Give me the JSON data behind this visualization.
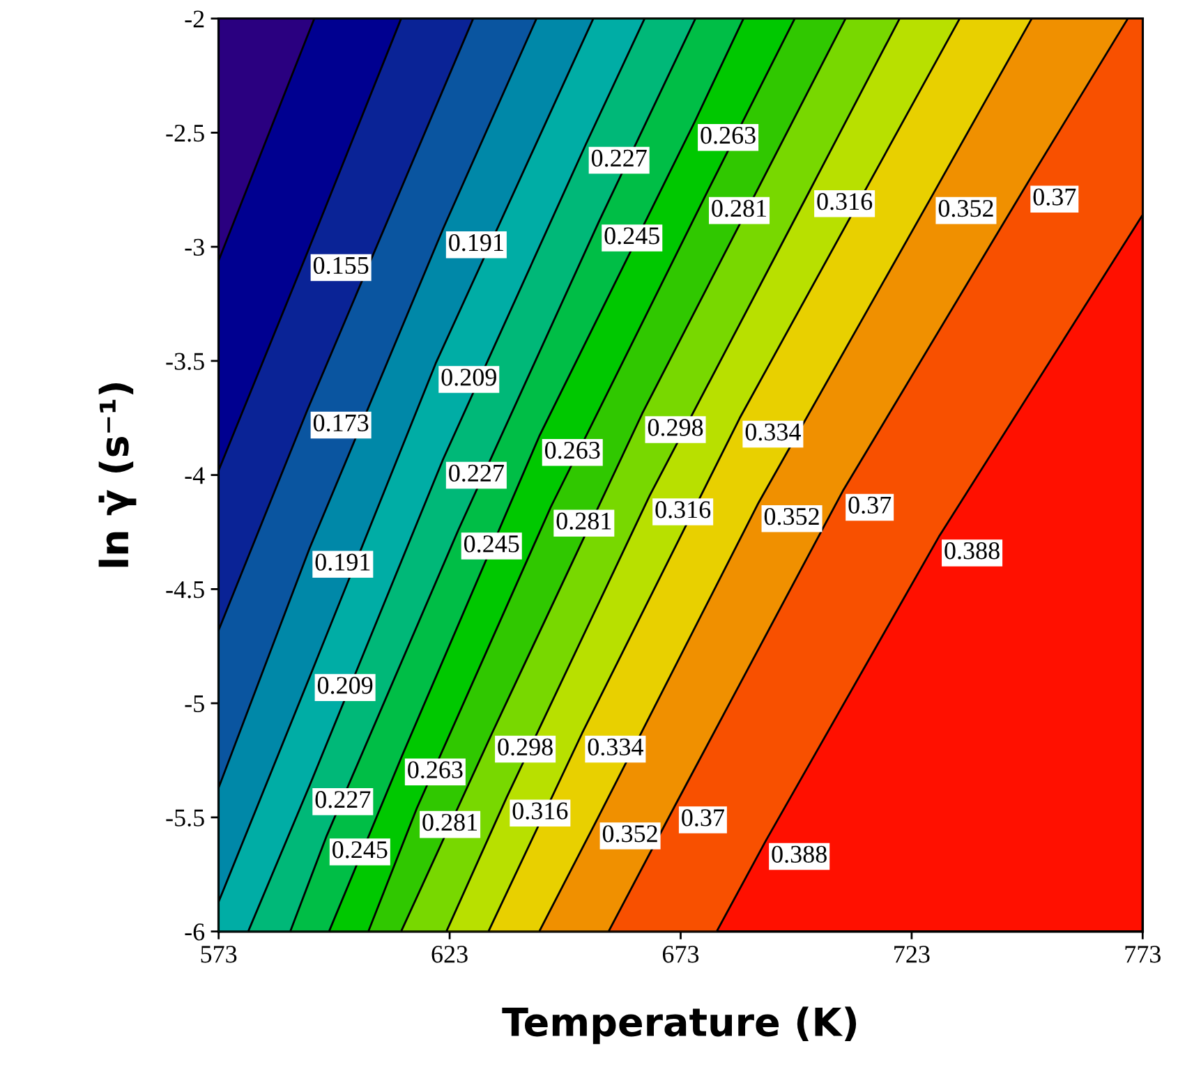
{
  "chart_data": {
    "type": "area",
    "xlabel": "Temperature (K)",
    "ylabel": "ln γ̇ (s⁻¹)",
    "xlim": [
      573,
      773
    ],
    "xticks": [
      573,
      623,
      673,
      723,
      773
    ],
    "ylim": [
      -6,
      -2
    ],
    "yticks": [
      -2,
      -2.5,
      -3,
      -3.5,
      -4,
      -4.5,
      -5,
      -5.5,
      -6
    ],
    "grid": false,
    "legend": false,
    "bands": [
      {
        "axis": "x",
        "from": 680.8,
        "to": 773,
        "color": "#ff1000"
      }
    ],
    "series": [
      {
        "color": "#2a0080",
        "x": [
          593.7,
          573
        ],
        "values": [
          -2,
          -3.06
        ]
      },
      {
        "color": "#000090",
        "x": [
          612.5,
          592.3,
          573
        ],
        "values": [
          -2,
          -3.02,
          -3.98
        ]
      },
      {
        "color": "#0a2396",
        "x": [
          628.1,
          592.3,
          573
        ],
        "values": [
          -2,
          -3.71,
          -4.68
        ]
      },
      {
        "color": "#0a55a0",
        "x": [
          641.8,
          621.6,
          592.7,
          573
        ],
        "values": [
          -2,
          -2.92,
          -4.32,
          -5.37
        ]
      },
      {
        "color": "#0088a8",
        "x": [
          654.1,
          620.0,
          593.2,
          573
        ],
        "values": [
          -2,
          -3.51,
          -4.86,
          -5.87
        ]
      },
      {
        "color": "#00ada5",
        "x": [
          665.2,
          652.5,
          621.6,
          592.7,
          579.4,
          573
        ],
        "values": [
          -2,
          -2.55,
          -3.93,
          -5.36,
          -6,
          -6
        ]
      },
      {
        "color": "#00b878",
        "x": [
          676.2,
          655.3,
          624.9,
          596.4,
          588.5,
          573
        ],
        "values": [
          -2,
          -2.89,
          -4.24,
          -5.58,
          -6,
          -6
        ]
      },
      {
        "color": "#00be46",
        "x": [
          686.6,
          676.1,
          642.4,
          612.7,
          596.9,
          573
        ],
        "values": [
          -2,
          -2.45,
          -3.83,
          -5.23,
          -6,
          -6
        ]
      },
      {
        "color": "#00c800",
        "x": [
          697.7,
          678.5,
          644.9,
          615.9,
          605.4,
          573
        ],
        "values": [
          -2,
          -2.77,
          -4.14,
          -5.46,
          -6,
          -6
        ]
      },
      {
        "color": "#30c800",
        "x": [
          708.7,
          664.7,
          632.2,
          612.5,
          573
        ],
        "values": [
          -2,
          -3.73,
          -5.13,
          -6,
          -6
        ]
      },
      {
        "color": "#78d800",
        "x": [
          720.4,
          701.3,
          666.3,
          635.4,
          622.3,
          573
        ],
        "values": [
          -2,
          -2.74,
          -4.09,
          -5.41,
          -6,
          -6
        ]
      },
      {
        "color": "#b8e000",
        "x": [
          733.4,
          685.8,
          651.7,
          631.4,
          573
        ],
        "values": [
          -2,
          -3.75,
          -5.13,
          -6,
          -6
        ]
      },
      {
        "color": "#e8d000",
        "x": [
          749.0,
          727.6,
          689.9,
          654.9,
          642.4,
          573
        ],
        "values": [
          -2,
          -2.77,
          -4.12,
          -5.51,
          -6,
          -6
        ]
      },
      {
        "color": "#f09000",
        "x": [
          769.8,
          748.1,
          708.1,
          672.0,
          657.4,
          573
        ],
        "values": [
          -2,
          -2.72,
          -4.07,
          -5.44,
          -6,
          -6
        ]
      },
      {
        "color": "#f85000",
        "x": [
          773,
          773,
          728.9,
          691.5,
          680.8,
          573
        ],
        "values": [
          -2,
          -2.86,
          -4.27,
          -5.6,
          -6,
          -6
        ]
      }
    ],
    "annotations": [
      {
        "text": "0.263",
        "x": 676.1,
        "y": -2.45
      },
      {
        "text": "0.227",
        "x": 652.5,
        "y": -2.55
      },
      {
        "text": "0.281",
        "x": 678.5,
        "y": -2.77
      },
      {
        "text": "0.316",
        "x": 701.3,
        "y": -2.74
      },
      {
        "text": "0.352",
        "x": 727.6,
        "y": -2.77
      },
      {
        "text": "0.37",
        "x": 748.1,
        "y": -2.72
      },
      {
        "text": "0.155",
        "x": 592.3,
        "y": -3.02
      },
      {
        "text": "0.191",
        "x": 621.6,
        "y": -2.92
      },
      {
        "text": "0.245",
        "x": 655.3,
        "y": -2.89
      },
      {
        "text": "0.209",
        "x": 620.0,
        "y": -3.51
      },
      {
        "text": "0.173",
        "x": 592.3,
        "y": -3.71
      },
      {
        "text": "0.298",
        "x": 664.7,
        "y": -3.73
      },
      {
        "text": "0.334",
        "x": 685.8,
        "y": -3.75
      },
      {
        "text": "0.263",
        "x": 642.4,
        "y": -3.83
      },
      {
        "text": "0.227",
        "x": 621.6,
        "y": -3.93
      },
      {
        "text": "0.316",
        "x": 666.3,
        "y": -4.09
      },
      {
        "text": "0.37",
        "x": 708.1,
        "y": -4.07
      },
      {
        "text": "0.352",
        "x": 689.9,
        "y": -4.12
      },
      {
        "text": "0.281",
        "x": 644.9,
        "y": -4.14
      },
      {
        "text": "0.245",
        "x": 624.9,
        "y": -4.24
      },
      {
        "text": "0.388",
        "x": 728.9,
        "y": -4.27
      },
      {
        "text": "0.191",
        "x": 592.7,
        "y": -4.32
      },
      {
        "text": "0.209",
        "x": 593.2,
        "y": -4.86
      },
      {
        "text": "0.334",
        "x": 651.7,
        "y": -5.13
      },
      {
        "text": "0.298",
        "x": 632.2,
        "y": -5.13
      },
      {
        "text": "0.263",
        "x": 612.7,
        "y": -5.23
      },
      {
        "text": "0.227",
        "x": 592.7,
        "y": -5.36
      },
      {
        "text": "0.281",
        "x": 615.9,
        "y": -5.46
      },
      {
        "text": "0.316",
        "x": 635.4,
        "y": -5.41
      },
      {
        "text": "0.37",
        "x": 672.0,
        "y": -5.44
      },
      {
        "text": "0.352",
        "x": 654.9,
        "y": -5.51
      },
      {
        "text": "0.245",
        "x": 596.4,
        "y": -5.58
      },
      {
        "text": "0.388",
        "x": 691.5,
        "y": -5.6
      }
    ]
  }
}
